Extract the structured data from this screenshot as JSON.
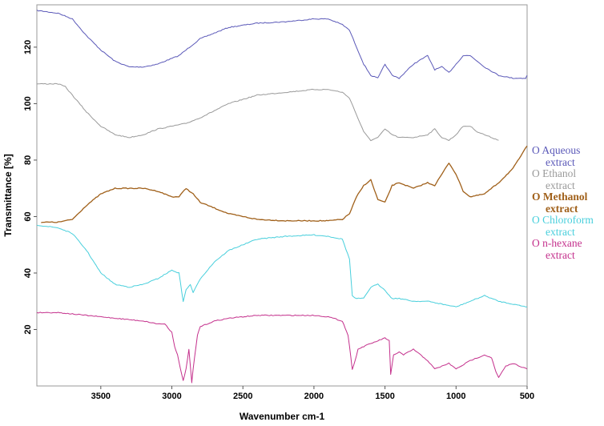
{
  "chart_data": {
    "type": "line",
    "title": "",
    "xlabel": "Wavenumber cm-1",
    "ylabel": "Transmittance [%]",
    "xlim": [
      3950,
      500
    ],
    "ylim": [
      0,
      135
    ],
    "x_reversed": true,
    "grid": false,
    "legend_position": "right",
    "xticks": [
      3500,
      3000,
      2500,
      2000,
      1500,
      1000,
      500
    ],
    "xtick_labels": [
      "3500",
      "3000",
      "2500",
      "2000",
      "1500",
      "1000",
      "500"
    ],
    "yticks": [
      20,
      40,
      60,
      80,
      100,
      120
    ],
    "ytick_labels": [
      "20",
      "40",
      "60",
      "80",
      "100",
      "120"
    ],
    "series": [
      {
        "name": "Aqueous extract",
        "marker_label": "O",
        "name_line1": "Aqueous",
        "name_line2": "extract",
        "color": "#5a58b8",
        "bold": false,
        "x": [
          3950,
          3800,
          3700,
          3600,
          3500,
          3400,
          3300,
          3200,
          3100,
          3000,
          2950,
          2900,
          2800,
          2600,
          2400,
          2200,
          2000,
          1900,
          1800,
          1750,
          1700,
          1650,
          1600,
          1550,
          1500,
          1450,
          1400,
          1300,
          1200,
          1150,
          1100,
          1050,
          1000,
          950,
          900,
          850,
          800,
          700,
          600,
          510,
          500
        ],
        "y": [
          133,
          132,
          130,
          124,
          119,
          115,
          113,
          113,
          114,
          116,
          117,
          119,
          123,
          127,
          128.5,
          129,
          130,
          130,
          128,
          126,
          120,
          114,
          110,
          109,
          114,
          110,
          109,
          114,
          117,
          112,
          113,
          111,
          114,
          117,
          117,
          115,
          113,
          110,
          109,
          109,
          110
        ]
      },
      {
        "name": "Ethanol extract",
        "marker_label": "O",
        "name_line1": "Ethanol",
        "name_line2": "extract",
        "color": "#9a9a9a",
        "bold": false,
        "x": [
          3950,
          3800,
          3750,
          3700,
          3600,
          3500,
          3400,
          3300,
          3200,
          3100,
          3000,
          2900,
          2800,
          2600,
          2400,
          2200,
          2000,
          1900,
          1800,
          1750,
          1700,
          1650,
          1600,
          1550,
          1500,
          1450,
          1400,
          1300,
          1200,
          1150,
          1100,
          1050,
          1000,
          950,
          900,
          850,
          800,
          700
        ],
        "y": [
          107,
          107,
          106,
          103,
          97,
          92,
          89,
          88,
          89,
          91,
          92,
          93,
          95,
          100,
          103,
          104,
          105,
          105,
          104,
          102,
          96,
          90,
          87,
          88,
          91,
          89,
          88,
          88,
          89,
          91,
          88,
          87,
          89,
          92,
          92,
          90,
          89,
          87
        ]
      },
      {
        "name": "Methanol extract",
        "marker_label": "O",
        "name_line1": "Methanol",
        "name_line2": "extract",
        "color": "#a0601a",
        "bold": true,
        "x": [
          3920,
          3800,
          3700,
          3600,
          3500,
          3400,
          3300,
          3200,
          3100,
          3000,
          2950,
          2900,
          2850,
          2800,
          2600,
          2400,
          2200,
          2000,
          1900,
          1800,
          1750,
          1700,
          1650,
          1600,
          1550,
          1500,
          1450,
          1400,
          1300,
          1200,
          1150,
          1100,
          1050,
          1000,
          950,
          900,
          800,
          700,
          600,
          500
        ],
        "y": [
          58,
          58,
          59,
          64,
          68,
          70,
          70,
          70,
          69,
          67,
          67,
          70,
          68,
          65,
          61,
          59,
          58.5,
          58.5,
          58.5,
          59,
          61,
          67,
          71,
          73,
          66,
          65,
          71,
          72,
          70,
          72,
          71,
          75,
          79,
          75,
          69,
          67,
          68,
          72,
          77,
          85
        ]
      },
      {
        "name": "Chloroform extract",
        "marker_label": "O",
        "name_line1": "Chloroform",
        "name_line2": "extract",
        "color": "#48cfdc",
        "bold": false,
        "x": [
          3950,
          3800,
          3700,
          3600,
          3500,
          3400,
          3300,
          3200,
          3100,
          3000,
          2950,
          2920,
          2900,
          2870,
          2850,
          2800,
          2700,
          2600,
          2400,
          2200,
          2000,
          1900,
          1800,
          1750,
          1730,
          1710,
          1650,
          1600,
          1550,
          1500,
          1470,
          1450,
          1400,
          1300,
          1200,
          1100,
          1000,
          900,
          800,
          700,
          600,
          500
        ],
        "y": [
          57,
          56,
          54,
          48,
          40,
          36,
          35,
          36,
          38,
          41,
          40,
          30,
          34,
          36,
          33,
          38,
          44,
          48,
          52,
          53,
          53.5,
          53,
          52,
          45,
          32,
          31,
          31,
          35,
          36,
          34,
          32,
          31,
          31,
          30,
          30,
          29,
          28,
          30,
          32,
          30,
          29,
          28
        ]
      },
      {
        "name": "n-hexane extract",
        "marker_label": "O",
        "name_line1": "n-hexane",
        "name_line2": "extract",
        "color": "#c4308c",
        "bold": false,
        "x": [
          3950,
          3800,
          3600,
          3400,
          3200,
          3100,
          3050,
          3000,
          2980,
          2960,
          2940,
          2920,
          2900,
          2880,
          2860,
          2850,
          2820,
          2800,
          2700,
          2600,
          2500,
          2400,
          2200,
          2000,
          1900,
          1800,
          1760,
          1740,
          1730,
          1710,
          1690,
          1650,
          1600,
          1550,
          1500,
          1470,
          1460,
          1440,
          1400,
          1370,
          1300,
          1200,
          1150,
          1100,
          1050,
          1000,
          900,
          800,
          750,
          720,
          700,
          650,
          600,
          550,
          500
        ],
        "y": [
          26,
          26,
          25,
          24,
          23,
          22,
          22,
          19,
          14,
          11,
          6,
          2,
          6,
          13,
          1,
          6,
          18,
          21,
          23,
          24,
          24.5,
          25,
          25,
          25,
          24.5,
          23,
          18,
          10,
          6,
          9,
          13,
          14,
          15,
          16,
          17,
          16,
          4,
          11,
          12,
          11,
          13,
          9,
          6,
          7,
          8,
          6,
          9,
          11,
          10,
          5,
          3,
          7,
          8,
          7,
          6
        ]
      }
    ]
  }
}
